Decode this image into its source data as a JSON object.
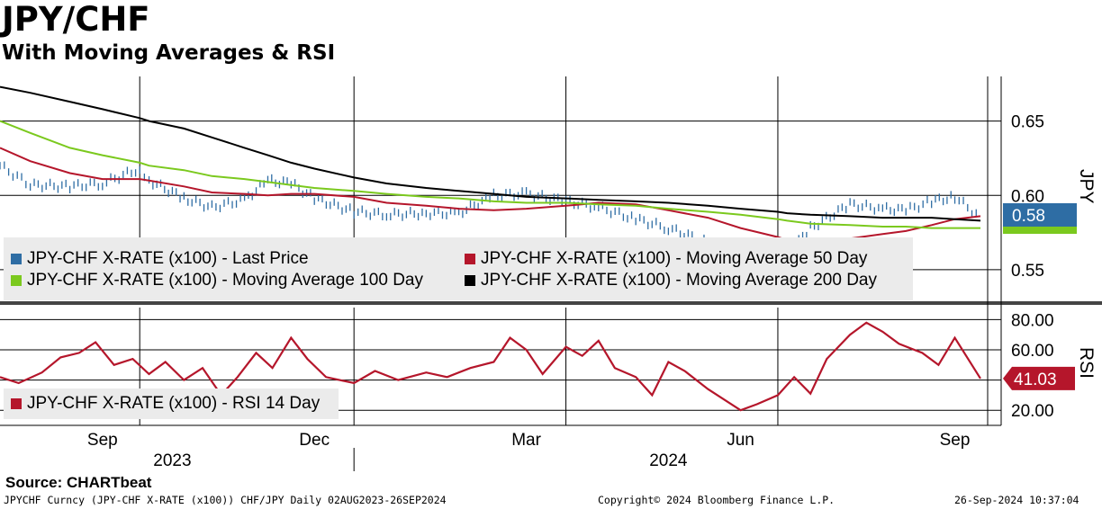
{
  "header": {
    "title": "JPY/CHF",
    "subtitle": "With Moving Averages & RSI"
  },
  "source": "Source: CHARTbeat",
  "footer": {
    "left": "JPYCHF Curncy (JPY-CHF X-RATE (x100)) CHF/JPY  Daily 02AUG2023-26SEP2024",
    "center": "Copyright© 2024 Bloomberg Finance L.P.",
    "right": "26-Sep-2024 10:37:04"
  },
  "colors": {
    "last_price": "#2e6da4",
    "ma50": "#b5162b",
    "ma100": "#7bc91e",
    "ma200": "#000000",
    "rsi": "#b5162b",
    "legend_bg": "#ebebeb"
  },
  "chart_data": [
    {
      "type": "line",
      "panel": "price",
      "axis_side": "right",
      "axis_title": "JPY",
      "ylim": [
        0.53,
        0.68
      ],
      "yticks": [
        0.55,
        0.6,
        0.65
      ],
      "ytick_labels": [
        "0.55",
        "0.60",
        "0.65"
      ],
      "x_month_labels": [
        "Sep",
        "Dec",
        "Mar",
        "Jun",
        "Sep"
      ],
      "x_month_dates": [
        "2023-09-15",
        "2023-12-15",
        "2024-03-15",
        "2024-06-15",
        "2024-09-15"
      ],
      "x_year_labels": [
        "2023",
        "2024"
      ],
      "x_year_dates": [
        "2023-10-15",
        "2024-05-15"
      ],
      "x_gridlines": [
        "2023-10-01",
        "2024-01-01",
        "2024-04-01",
        "2024-07-01"
      ],
      "x_range": [
        "2023-08-02",
        "2024-09-26"
      ],
      "x": [
        "2023-08-02",
        "2023-08-15",
        "2023-09-01",
        "2023-09-15",
        "2023-10-01",
        "2023-10-05",
        "2023-10-20",
        "2023-11-01",
        "2023-11-15",
        "2023-11-25",
        "2023-12-05",
        "2023-12-15",
        "2024-01-01",
        "2024-01-15",
        "2024-02-01",
        "2024-02-15",
        "2024-03-01",
        "2024-03-15",
        "2024-04-01",
        "2024-04-15",
        "2024-05-01",
        "2024-05-15",
        "2024-06-01",
        "2024-06-15",
        "2024-07-01",
        "2024-07-05",
        "2024-07-15",
        "2024-08-01",
        "2024-08-15",
        "2024-08-25",
        "2024-09-05",
        "2024-09-15",
        "2024-09-26"
      ],
      "series": [
        {
          "name": "JPY-CHF X-RATE (x100) - Last Price",
          "style": "bars",
          "values": [
            0.62,
            0.607,
            0.606,
            0.608,
            0.618,
            0.61,
            0.598,
            0.592,
            0.597,
            0.61,
            0.608,
            0.598,
            0.589,
            0.587,
            0.588,
            0.588,
            0.6,
            0.601,
            0.596,
            0.592,
            0.584,
            0.578,
            0.568,
            0.56,
            0.557,
            0.56,
            0.578,
            0.594,
            0.591,
            0.59,
            0.596,
            0.599,
            0.585
          ]
        },
        {
          "name": "JPY-CHF X-RATE (x100) - Moving Average 50 Day",
          "values": [
            0.632,
            0.623,
            0.615,
            0.611,
            0.611,
            0.61,
            0.606,
            0.602,
            0.601,
            0.6,
            0.601,
            0.601,
            0.599,
            0.595,
            0.593,
            0.591,
            0.59,
            0.591,
            0.593,
            0.595,
            0.594,
            0.59,
            0.585,
            0.578,
            0.572,
            0.57,
            0.57,
            0.571,
            0.574,
            0.576,
            0.58,
            0.584,
            0.586
          ]
        },
        {
          "name": "JPY-CHF X-RATE (x100) - Moving Average 100 Day",
          "values": [
            0.65,
            0.642,
            0.632,
            0.627,
            0.622,
            0.62,
            0.617,
            0.613,
            0.611,
            0.609,
            0.607,
            0.605,
            0.603,
            0.601,
            0.599,
            0.598,
            0.596,
            0.595,
            0.595,
            0.594,
            0.593,
            0.591,
            0.589,
            0.587,
            0.584,
            0.583,
            0.581,
            0.58,
            0.579,
            0.579,
            0.578,
            0.578,
            0.578
          ]
        },
        {
          "name": "JPY-CHF X-RATE (x100) - Moving Average 200 Day",
          "values": [
            0.673,
            0.669,
            0.663,
            0.658,
            0.652,
            0.65,
            0.645,
            0.639,
            0.632,
            0.627,
            0.622,
            0.618,
            0.612,
            0.608,
            0.605,
            0.603,
            0.601,
            0.599,
            0.598,
            0.597,
            0.596,
            0.595,
            0.593,
            0.591,
            0.589,
            0.588,
            0.587,
            0.586,
            0.585,
            0.585,
            0.585,
            0.584,
            0.583
          ]
        }
      ],
      "last_value_label": "0.58",
      "legend_placement": "bottom-left"
    },
    {
      "type": "line",
      "panel": "rsi",
      "axis_side": "right",
      "axis_title": "RSI",
      "ylim": [
        10,
        88
      ],
      "yticks": [
        20,
        40,
        60,
        80
      ],
      "ytick_labels": [
        "20.00",
        "",
        "60.00",
        "80.00"
      ],
      "x": [
        "2023-08-02",
        "2023-08-10",
        "2023-08-20",
        "2023-08-28",
        "2023-09-05",
        "2023-09-12",
        "2023-09-20",
        "2023-09-28",
        "2023-10-05",
        "2023-10-12",
        "2023-10-20",
        "2023-10-28",
        "2023-11-05",
        "2023-11-12",
        "2023-11-20",
        "2023-11-27",
        "2023-12-05",
        "2023-12-12",
        "2023-12-20",
        "2024-01-01",
        "2024-01-10",
        "2024-01-20",
        "2024-02-01",
        "2024-02-10",
        "2024-02-20",
        "2024-03-01",
        "2024-03-08",
        "2024-03-15",
        "2024-03-22",
        "2024-04-01",
        "2024-04-08",
        "2024-04-15",
        "2024-04-22",
        "2024-05-01",
        "2024-05-08",
        "2024-05-15",
        "2024-05-22",
        "2024-06-01",
        "2024-06-08",
        "2024-06-15",
        "2024-06-22",
        "2024-07-01",
        "2024-07-08",
        "2024-07-15",
        "2024-07-22",
        "2024-08-01",
        "2024-08-08",
        "2024-08-15",
        "2024-08-22",
        "2024-09-01",
        "2024-09-08",
        "2024-09-15",
        "2024-09-26"
      ],
      "series": [
        {
          "name": "JPY-CHF X-RATE (x100) - RSI 14 Day",
          "values": [
            42,
            38,
            45,
            55,
            58,
            65,
            50,
            54,
            44,
            52,
            40,
            48,
            30,
            42,
            58,
            48,
            68,
            54,
            42,
            38,
            46,
            40,
            45,
            42,
            48,
            52,
            68,
            60,
            44,
            62,
            56,
            66,
            48,
            42,
            30,
            52,
            46,
            34,
            27,
            20,
            24,
            30,
            42,
            31,
            54,
            70,
            78,
            72,
            64,
            58,
            50,
            68,
            41
          ]
        }
      ],
      "last_value_label": "41.03",
      "legend_placement": "bottom-left"
    }
  ]
}
